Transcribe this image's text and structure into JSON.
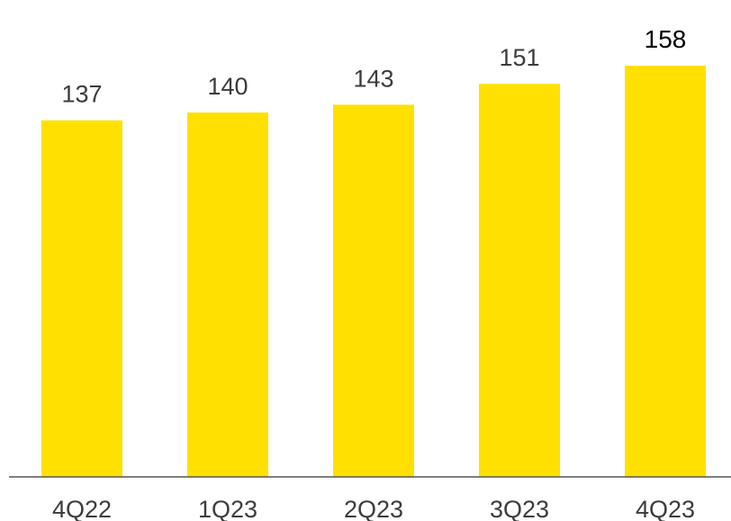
{
  "chart_data": {
    "type": "bar",
    "categories": [
      "4Q22",
      "1Q23",
      "2Q23",
      "3Q23",
      "4Q23"
    ],
    "values": [
      137,
      140,
      143,
      151,
      158
    ],
    "data_labels": [
      "137",
      "140",
      "143",
      "151",
      "158"
    ],
    "title": "",
    "xlabel": "",
    "ylabel": "",
    "ylim": [
      0,
      158
    ],
    "grid": false,
    "legend": "none",
    "colors": {
      "bar": "#FFE000",
      "axis": "#555555",
      "label": "#3c3c3c",
      "highlight_label": "#000000"
    }
  }
}
